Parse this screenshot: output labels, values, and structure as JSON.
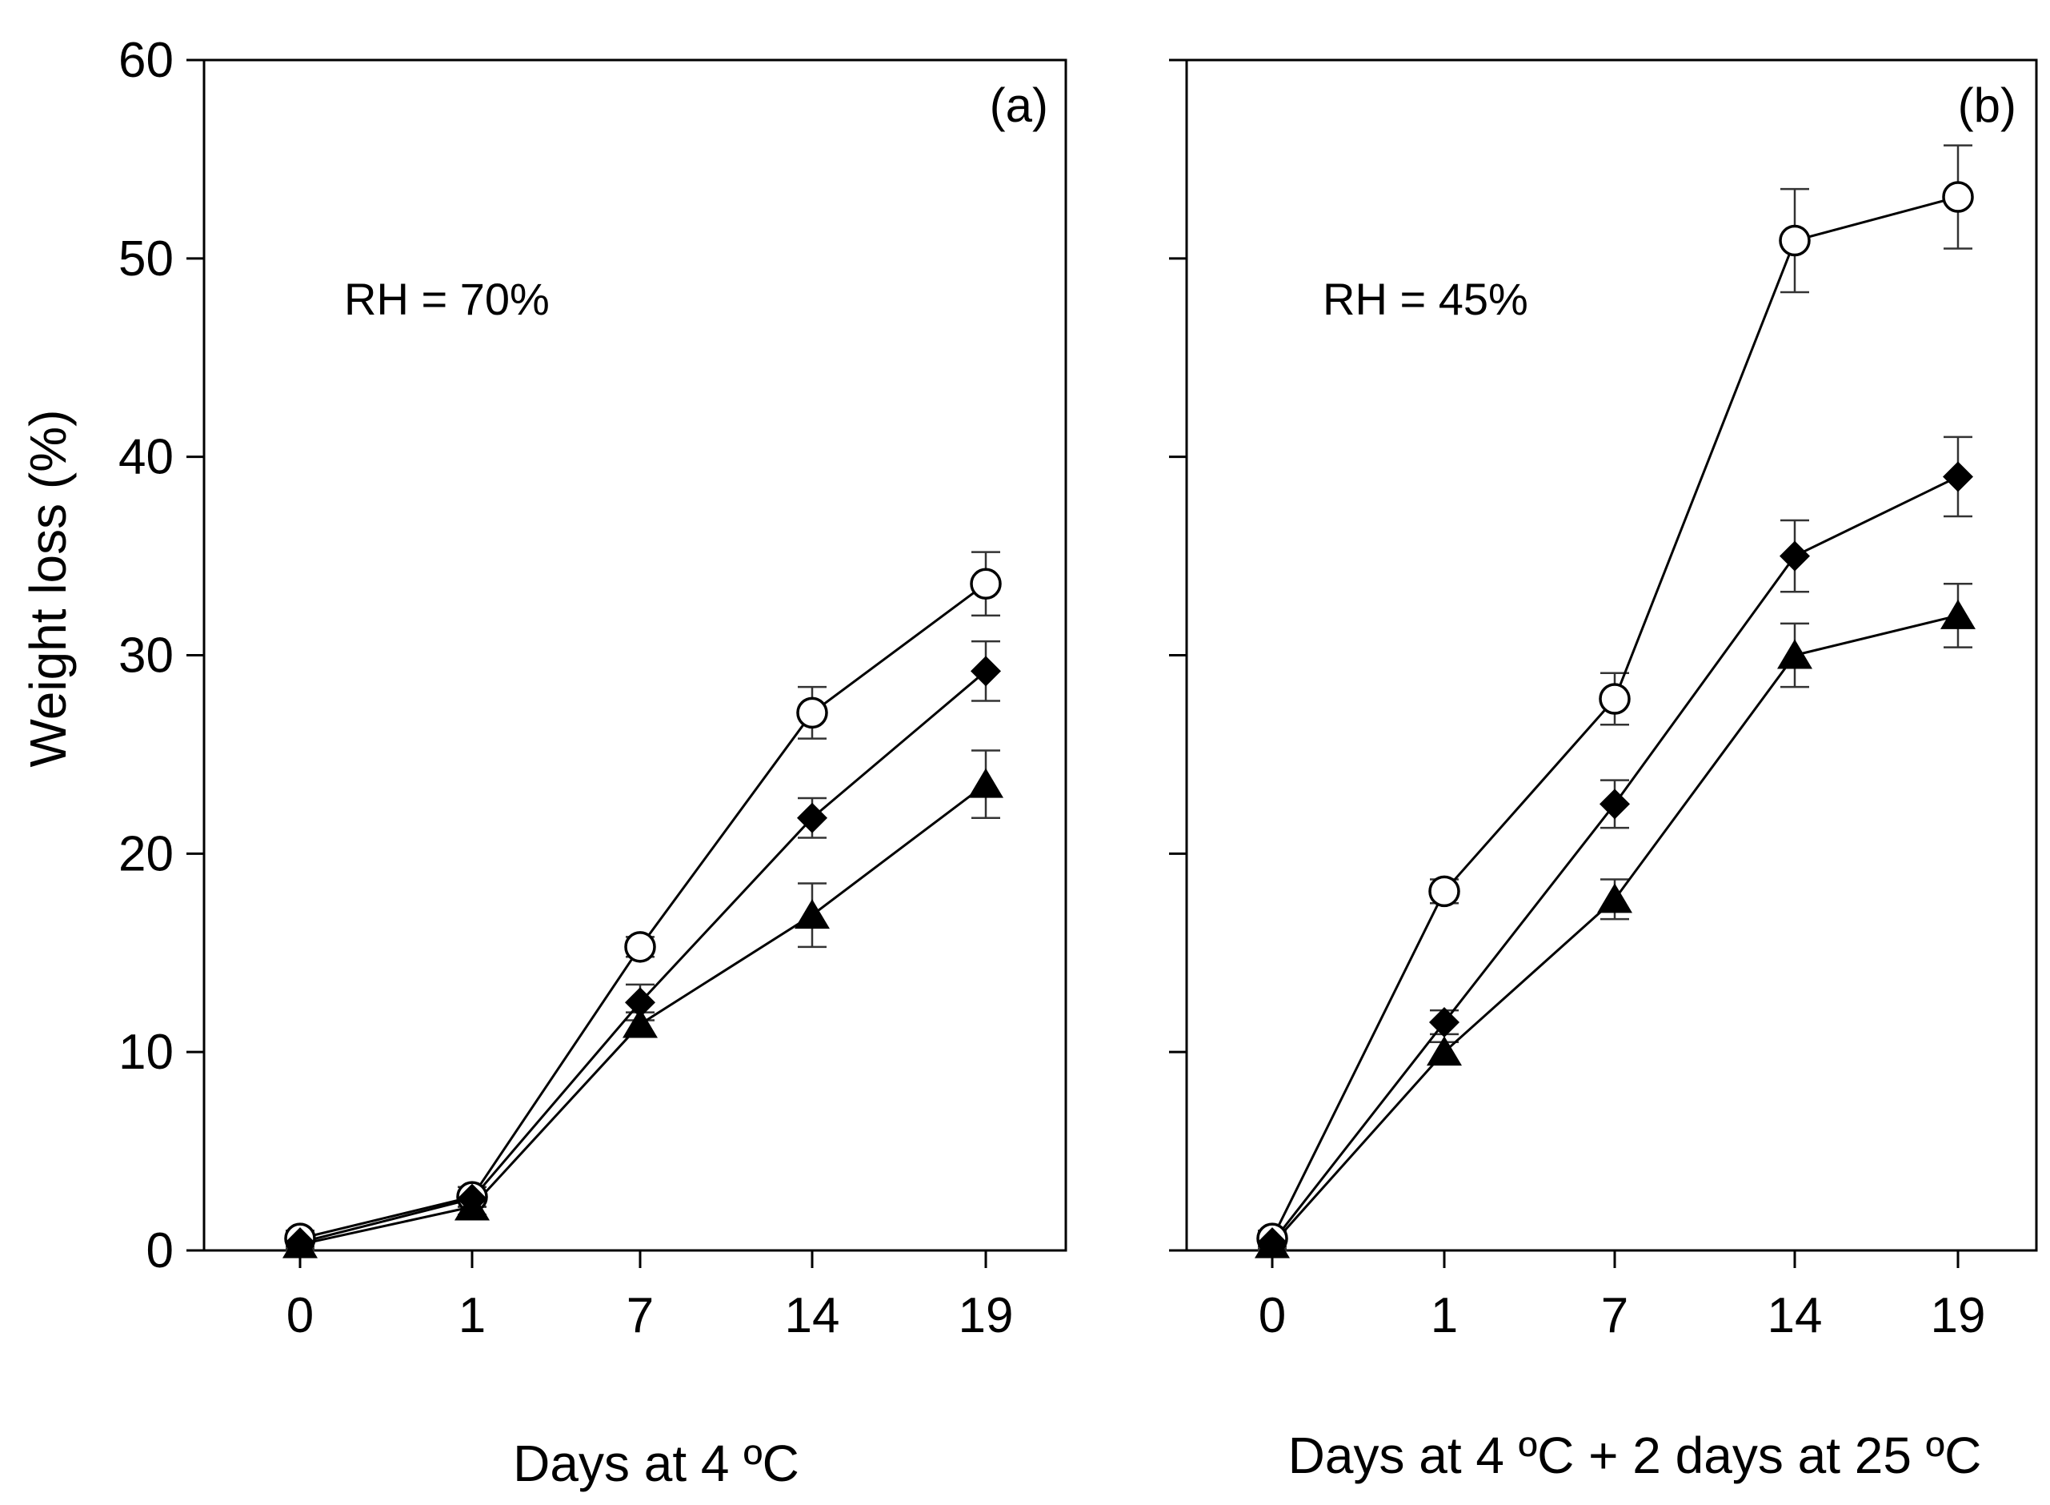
{
  "chart_data": [
    {
      "panel": "(a)",
      "type": "line",
      "annotation": "RH = 70%",
      "xlabel": "Days at 4 ºC",
      "ylabel": "Weight loss (%)",
      "categories": [
        "0",
        "1",
        "7",
        "14",
        "19"
      ],
      "ylim": [
        0,
        60
      ],
      "yticks": [
        "0",
        "10",
        "20",
        "30",
        "40",
        "50",
        "60"
      ],
      "series": [
        {
          "name": "open circle",
          "marker": "circle-open",
          "values": [
            0.6,
            2.7,
            15.3,
            27.1,
            33.6
          ],
          "errors": [
            0.4,
            0.5,
            0.5,
            1.3,
            1.6
          ]
        },
        {
          "name": "filled diamond",
          "marker": "diamond-filled",
          "values": [
            0.4,
            2.6,
            12.5,
            21.8,
            29.2
          ],
          "errors": [
            0.3,
            0.4,
            0.9,
            1.0,
            1.5
          ]
        },
        {
          "name": "filled triangle",
          "marker": "triangle-filled",
          "values": [
            0.3,
            2.2,
            11.4,
            16.9,
            23.5
          ],
          "errors": [
            0.3,
            0.4,
            0.6,
            1.6,
            1.7
          ]
        }
      ]
    },
    {
      "panel": "(b)",
      "type": "line",
      "annotation": "RH = 45%",
      "xlabel": "Days at 4 ºC + 2 days at 25 ºC",
      "ylabel": "",
      "categories": [
        "0",
        "1",
        "7",
        "14",
        "19"
      ],
      "ylim": [
        0,
        60
      ],
      "yticks": [],
      "series": [
        {
          "name": "open circle",
          "marker": "circle-open",
          "values": [
            0.6,
            18.1,
            27.8,
            50.9,
            53.1
          ],
          "errors": [
            0.4,
            0.6,
            1.3,
            2.6,
            2.6
          ]
        },
        {
          "name": "filled diamond",
          "marker": "diamond-filled",
          "values": [
            0.4,
            11.5,
            22.5,
            35.0,
            39.0
          ],
          "errors": [
            0.3,
            0.6,
            1.2,
            1.8,
            2.0
          ]
        },
        {
          "name": "filled triangle",
          "marker": "triangle-filled",
          "values": [
            0.3,
            10.0,
            17.7,
            30.0,
            32.0
          ],
          "errors": [
            0.3,
            0.5,
            1.0,
            1.6,
            1.6
          ]
        }
      ]
    }
  ]
}
